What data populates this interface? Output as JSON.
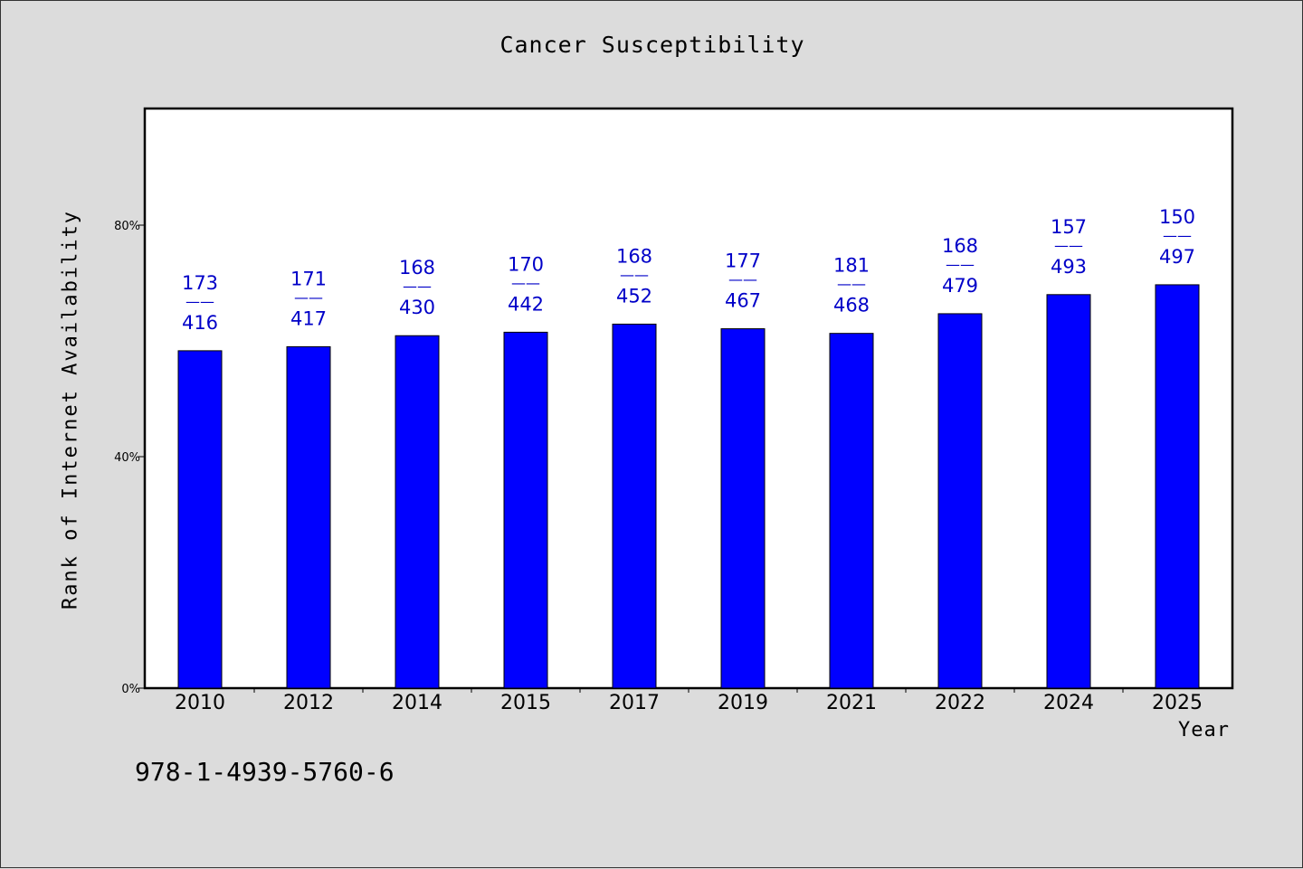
{
  "chart_data": {
    "type": "bar",
    "title": "Cancer Susceptibility",
    "xlabel": "Year",
    "ylabel": "Rank of Internet Availability",
    "ylim": [
      0,
      100
    ],
    "yticks": [
      0,
      40,
      80
    ],
    "ytick_labels": [
      "0%",
      "40%",
      "80%"
    ],
    "grid": false,
    "categories": [
      "2010",
      "2012",
      "2014",
      "2015",
      "2017",
      "2019",
      "2021",
      "2022",
      "2024",
      "2025"
    ],
    "values": [
      58.3,
      59.0,
      60.9,
      61.5,
      62.9,
      62.1,
      61.3,
      64.7,
      68.0,
      69.7
    ],
    "data_labels": [
      {
        "top": "173",
        "sep": "——",
        "bottom": "416"
      },
      {
        "top": "171",
        "sep": "——",
        "bottom": "417"
      },
      {
        "top": "168",
        "sep": "——",
        "bottom": "430"
      },
      {
        "top": "170",
        "sep": "——",
        "bottom": "442"
      },
      {
        "top": "168",
        "sep": "——",
        "bottom": "452"
      },
      {
        "top": "177",
        "sep": "——",
        "bottom": "467"
      },
      {
        "top": "181",
        "sep": "——",
        "bottom": "468"
      },
      {
        "top": "168",
        "sep": "——",
        "bottom": "479"
      },
      {
        "top": "157",
        "sep": "——",
        "bottom": "493"
      },
      {
        "top": "150",
        "sep": "——",
        "bottom": "497"
      }
    ],
    "bar_color": "#0000ff",
    "label_color": "#0000c8"
  },
  "footnote": "978-1-4939-5760-6"
}
